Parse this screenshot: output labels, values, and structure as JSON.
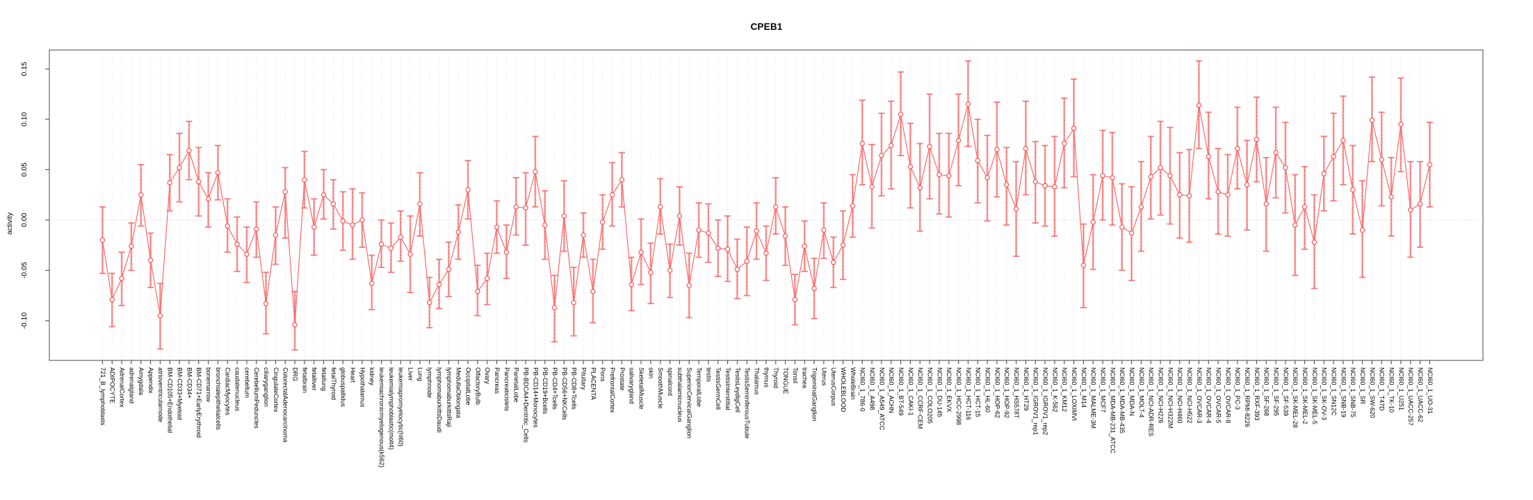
{
  "chart_data": {
    "type": "scatter",
    "title": "CPEB1",
    "xlabel": "",
    "ylabel": "activity",
    "ylim": [
      -0.139,
      0.169
    ],
    "yticks": [
      -0.1,
      -0.05,
      0.0,
      0.05,
      0.1,
      0.15
    ],
    "grid": "dotted vertical gridline per category; dotted horizontal line at y=0",
    "legend_position": "none",
    "marker": "open-circle",
    "error_bars": true,
    "categories": [
      "721_B_lymphoblasts",
      "ADIPOCYTE",
      "AdrenalCortex",
      "adrenalgland",
      "Amygdala",
      "Appendix",
      "atrioventricularnode",
      "BM-CD105+Endothelial",
      "BM-CD33+Myeloid",
      "BM-CD34+",
      "BM-CD71+EarlyErythroid",
      "bonemarrow",
      "bronchialepithelialcells",
      "CardiacMyocytes",
      "caudatenucleus",
      "cerebellum",
      "CerebellumPeduncles",
      "ciliaryganglion",
      "CingulateCortex",
      "ColorectalAdenocarcinoma",
      "DRG",
      "fetalbrain",
      "fetalliver",
      "fetallung",
      "fetalThyroid",
      "globuspallidus",
      "Heart",
      "Hypothalamus",
      "kidney",
      "leukemiachronicmyelogenous(k562)",
      "leukemialymphoblastic(molt4)",
      "leukemiapromyelocytic(hl60)",
      "Liver",
      "Lung",
      "lymphnode",
      "lymphomaburkittsDaudi",
      "lymphomaburkittsRaji",
      "MedullaOblongata",
      "OccipitalLobe",
      "OlfactoryBulb",
      "Ovary",
      "Pancreas",
      "Pancreaticislets",
      "ParietalLobe",
      "PB-BDCA4+Dentritic_Cells",
      "PB-CD14+Monocytes",
      "PB-CD19+Bcells",
      "PB-CD4+Tcells",
      "PB-CD56+NKCells",
      "PB-CD8+Tcells",
      "Pituitary",
      "PLACENTA",
      "Pons",
      "PrefrontalCortex",
      "Prostate",
      "salivarygland",
      "SkeletalMuscle",
      "skin",
      "SmoothMuscle",
      "spinalcord",
      "subthalamicnucleus",
      "SuperiorCervicalGanglion",
      "TemporalLobe",
      "testis",
      "TestisGermCell",
      "TestisInterstitial",
      "TestisLeydigCell",
      "TestisSeminiferousTubule",
      "Thalamus",
      "thymus",
      "Thyroid",
      "TONGUE",
      "Tonsil",
      "trachea",
      "TrigeminalGanglion",
      "Uterus",
      "UterusCorpus",
      "WHOLEBLOOD",
      "WholeBrain",
      "NCI60_1_786-0",
      "NCI60_1_A498",
      "NCI60_1_A549_ATCC",
      "NCI60_1_ACHN",
      "NCI60_1_BT-549",
      "NCI60_1_CAKI-1",
      "NCI60_1_CCRF-CEM",
      "NCI60_1_COLO205",
      "NCI60_1_DU-145",
      "NCI60_1_EKVX",
      "NCI60_1_HCC-2998",
      "NCI60_1_HCT-116",
      "NCI60_1_HCT-15",
      "NCI60_1_HL-60",
      "NCI60_1_HOP-62",
      "NCI60_1_HOP-92",
      "NCI60_1_HS578T",
      "NCI60_1_HT29",
      "NCI60_1_IGROV1_rep1",
      "NCI60_1_IGROV1_rep2",
      "NCI60_1_K-562",
      "NCI60_1_KM12",
      "NCI60_1_LOXIMVI",
      "NCI60_1_M14",
      "NCI60_1_MALME-3M",
      "NCI60_1_MCF7",
      "NCI60_1_MDA-MB-231_ATCC",
      "NCI60_1_MDA-MB-435",
      "NCI60_1_MDA-N",
      "NCI60_1_MOLT-4",
      "NCI60_1_NCI-ADR-RES",
      "NCI60_1_NCI-H226",
      "NCI60_1_NCI-H322M",
      "NCI60_1_NCI-H460",
      "NCI60_1_NCI-H522",
      "NCI60_1_OVCAR-3",
      "NCI60_1_OVCAR-4",
      "NCI60_1_OVCAR-5",
      "NCI60_1_OVCAR-8",
      "NCI60_1_PC-3",
      "NCI60_1_RPMI-8226",
      "NCI60_1_RXF-393",
      "NCI60_1_SF-268",
      "NCI60_1_SF-295",
      "NCI60_1_SF-539",
      "NCI60_1_SK-MEL-28",
      "NCI60_1_SK-MEL-2",
      "NCI60_1_SK-MEL-5",
      "NCI60_1_SK-OV-3",
      "NCI60_1_SN12C",
      "NCI60_1_SNB-19",
      "NCI60_1_SNB-75",
      "NCI60_1_SR",
      "NCI60_1_SW-620",
      "NCI60_1_T47D",
      "NCI60_1_TK-10",
      "NCI60_1_U251",
      "NCI60_1_UACC-257",
      "NCI60_1_UACC-62",
      "NCI60_1_UO-31"
    ],
    "values": [
      -0.02,
      -0.079,
      -0.058,
      -0.026,
      0.025,
      -0.04,
      -0.095,
      0.037,
      0.052,
      0.069,
      0.038,
      0.021,
      0.047,
      -0.006,
      -0.024,
      -0.034,
      -0.009,
      -0.083,
      -0.015,
      0.028,
      -0.104,
      0.04,
      -0.007,
      0.025,
      0.016,
      -0.001,
      -0.005,
      0.0,
      -0.063,
      -0.024,
      -0.028,
      -0.017,
      -0.034,
      0.016,
      -0.082,
      -0.064,
      -0.049,
      -0.012,
      0.03,
      -0.071,
      -0.058,
      -0.007,
      -0.032,
      0.013,
      0.012,
      0.048,
      -0.005,
      -0.087,
      0.004,
      -0.082,
      -0.015,
      -0.071,
      -0.002,
      0.025,
      0.04,
      -0.064,
      -0.032,
      -0.052,
      0.013,
      -0.05,
      0.004,
      -0.065,
      -0.01,
      -0.013,
      -0.028,
      -0.029,
      -0.049,
      -0.041,
      -0.011,
      -0.033,
      0.013,
      -0.016,
      -0.079,
      -0.026,
      -0.068,
      -0.01,
      -0.042,
      -0.025,
      0.014,
      0.076,
      0.033,
      0.064,
      0.074,
      0.105,
      0.053,
      0.032,
      0.073,
      0.045,
      0.044,
      0.079,
      0.115,
      0.059,
      0.042,
      0.07,
      0.035,
      0.011,
      0.071,
      0.038,
      0.034,
      0.033,
      0.076,
      0.091,
      -0.045,
      -0.002,
      0.044,
      0.042,
      -0.007,
      -0.013,
      0.013,
      0.043,
      0.052,
      0.044,
      0.025,
      0.024,
      0.114,
      0.063,
      0.028,
      0.025,
      0.071,
      0.035,
      0.08,
      0.016,
      0.067,
      0.052,
      -0.005,
      0.013,
      -0.022,
      0.046,
      0.063,
      0.079,
      0.03,
      -0.01,
      0.099,
      0.06,
      0.023,
      0.095,
      0.01,
      0.016,
      0.055
    ],
    "err_lo": [
      -0.053,
      -0.106,
      -0.085,
      -0.05,
      -0.006,
      -0.067,
      -0.128,
      0.009,
      0.018,
      0.04,
      0.004,
      -0.007,
      0.02,
      -0.032,
      -0.051,
      -0.062,
      -0.037,
      -0.113,
      -0.044,
      -0.018,
      -0.129,
      0.012,
      -0.035,
      0.001,
      -0.009,
      -0.03,
      -0.039,
      -0.027,
      -0.089,
      -0.047,
      -0.052,
      -0.041,
      -0.072,
      -0.016,
      -0.107,
      -0.088,
      -0.076,
      -0.039,
      0.001,
      -0.095,
      -0.084,
      -0.033,
      -0.058,
      -0.015,
      -0.025,
      0.013,
      -0.039,
      -0.121,
      -0.031,
      -0.115,
      -0.037,
      -0.102,
      -0.029,
      -0.006,
      0.013,
      -0.09,
      -0.064,
      -0.083,
      -0.014,
      -0.077,
      -0.025,
      -0.097,
      -0.037,
      -0.042,
      -0.056,
      -0.061,
      -0.078,
      -0.075,
      -0.039,
      -0.06,
      -0.014,
      -0.045,
      -0.104,
      -0.051,
      -0.098,
      -0.038,
      -0.067,
      -0.059,
      -0.017,
      0.035,
      -0.008,
      0.024,
      0.031,
      0.064,
      0.012,
      -0.011,
      0.021,
      0.006,
      0.003,
      0.034,
      0.073,
      0.017,
      -0.001,
      0.023,
      -0.005,
      -0.036,
      0.025,
      -0.003,
      -0.006,
      -0.016,
      0.032,
      0.043,
      -0.087,
      -0.049,
      0.0,
      -0.005,
      -0.05,
      -0.06,
      -0.031,
      0.001,
      0.005,
      -0.004,
      -0.018,
      -0.022,
      0.071,
      0.021,
      -0.014,
      -0.016,
      0.031,
      -0.01,
      0.038,
      -0.031,
      0.022,
      0.007,
      -0.055,
      -0.029,
      -0.068,
      0.009,
      0.019,
      0.035,
      -0.014,
      -0.057,
      0.058,
      0.014,
      -0.016,
      0.048,
      -0.037,
      -0.027,
      0.013
    ],
    "err_hi": [
      0.013,
      -0.053,
      -0.032,
      -0.003,
      0.055,
      -0.013,
      -0.063,
      0.065,
      0.086,
      0.098,
      0.072,
      0.047,
      0.074,
      0.021,
      0.003,
      -0.007,
      0.018,
      -0.052,
      0.013,
      0.052,
      -0.071,
      0.068,
      0.021,
      0.05,
      0.04,
      0.028,
      0.031,
      0.027,
      -0.035,
      0.0,
      -0.003,
      0.009,
      0.004,
      0.047,
      -0.057,
      -0.039,
      -0.022,
      0.015,
      0.059,
      -0.045,
      -0.033,
      0.019,
      -0.005,
      0.042,
      0.047,
      0.083,
      0.029,
      -0.055,
      0.039,
      -0.047,
      0.007,
      -0.039,
      0.025,
      0.057,
      0.067,
      -0.037,
      0.001,
      -0.023,
      0.041,
      -0.024,
      0.033,
      -0.033,
      0.017,
      0.016,
      0.0,
      0.004,
      -0.019,
      -0.007,
      0.017,
      -0.006,
      0.042,
      0.013,
      -0.054,
      -0.001,
      -0.038,
      0.017,
      -0.017,
      0.009,
      0.045,
      0.119,
      0.075,
      0.106,
      0.118,
      0.147,
      0.096,
      0.076,
      0.125,
      0.086,
      0.086,
      0.125,
      0.158,
      0.1,
      0.084,
      0.117,
      0.072,
      0.058,
      0.118,
      0.078,
      0.074,
      0.083,
      0.121,
      0.14,
      -0.004,
      0.045,
      0.089,
      0.087,
      0.036,
      0.033,
      0.058,
      0.083,
      0.098,
      0.092,
      0.067,
      0.07,
      0.158,
      0.107,
      0.071,
      0.065,
      0.112,
      0.079,
      0.122,
      0.062,
      0.112,
      0.097,
      0.045,
      0.053,
      0.025,
      0.083,
      0.106,
      0.123,
      0.074,
      0.039,
      0.142,
      0.107,
      0.062,
      0.141,
      0.058,
      0.058,
      0.097
    ]
  },
  "colors": {
    "point_stroke": "#ff5252",
    "line_stroke": "#ff6060",
    "errorbar_pale": "rgba(246,122,122,0.75)",
    "errorbar_cap": "rgba(244,110,110,0.9)",
    "errorbar_dash": "#ff5d5d",
    "grid_vertical": "#dcdcdc",
    "zero_line": "#c9c9c9",
    "box_stroke": "#7a7a7a",
    "tick_stroke": "#4d4d4d",
    "text": "#000000"
  }
}
